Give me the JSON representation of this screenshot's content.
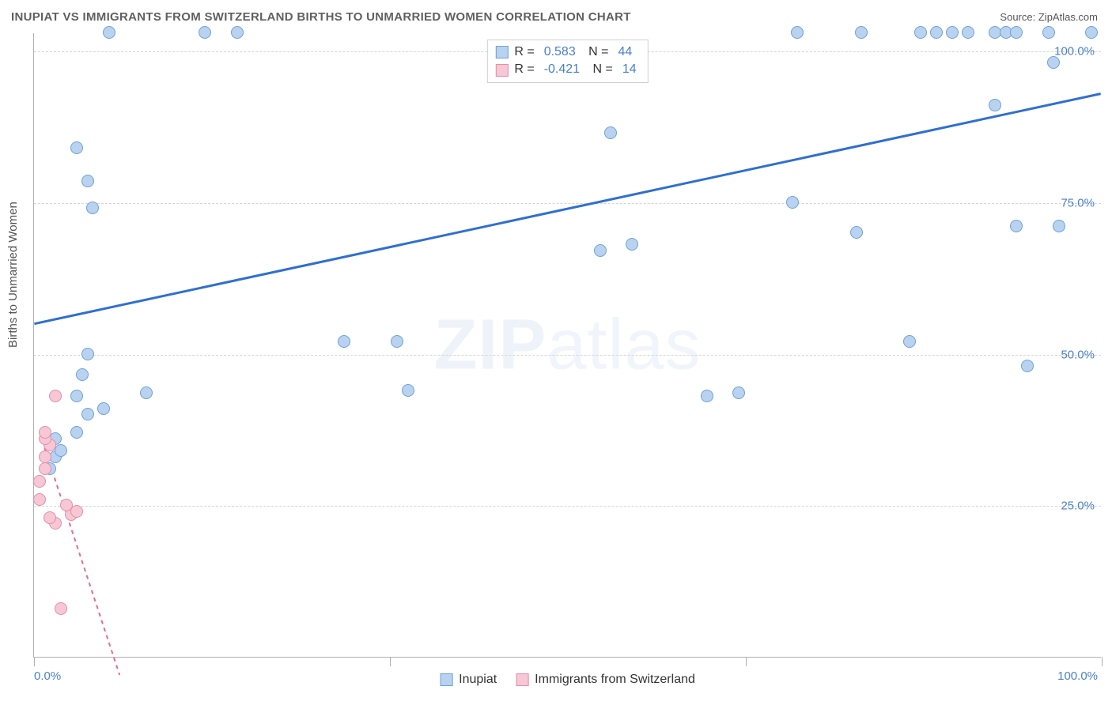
{
  "header": {
    "title": "INUPIAT VS IMMIGRANTS FROM SWITZERLAND BIRTHS TO UNMARRIED WOMEN CORRELATION CHART",
    "source_label": "Source:",
    "source_name": "ZipAtlas.com"
  },
  "ylabel": "Births to Unmarried Women",
  "watermark": {
    "bold": "ZIP",
    "light": "atlas"
  },
  "chart": {
    "type": "scatter",
    "xlim": [
      0,
      100
    ],
    "ylim": [
      0,
      103
    ],
    "grid_color": "#d5d5d5",
    "border_color": "#b0b0b0",
    "background_color": "#ffffff",
    "ytick_labels": [
      {
        "value": 25,
        "text": "25.0%"
      },
      {
        "value": 50,
        "text": "50.0%"
      },
      {
        "value": 75,
        "text": "75.0%"
      },
      {
        "value": 100,
        "text": "100.0%"
      }
    ],
    "xtick_positions": [
      0,
      33.3,
      66.7,
      100
    ],
    "xtick_labels": [
      {
        "pos": 0,
        "text": "0.0%",
        "align": "left"
      },
      {
        "pos": 100,
        "text": "100.0%",
        "align": "right"
      }
    ]
  },
  "series": [
    {
      "name": "Inupiat",
      "color_fill": "#b9d2ef",
      "color_stroke": "#6fa1d9",
      "line_color": "#2f6fd0",
      "line_width": 3,
      "line_dash": "none",
      "R": "0.583",
      "N": "44",
      "regression": {
        "x1": 0,
        "y1": 55,
        "x2": 100,
        "y2": 93
      },
      "points": [
        {
          "x": 1.5,
          "y": 31
        },
        {
          "x": 2,
          "y": 33
        },
        {
          "x": 2.5,
          "y": 34
        },
        {
          "x": 2,
          "y": 36
        },
        {
          "x": 4,
          "y": 37
        },
        {
          "x": 5,
          "y": 40
        },
        {
          "x": 6.5,
          "y": 41
        },
        {
          "x": 4,
          "y": 43
        },
        {
          "x": 10.5,
          "y": 43.5
        },
        {
          "x": 35,
          "y": 44
        },
        {
          "x": 4.5,
          "y": 46.5
        },
        {
          "x": 93,
          "y": 48
        },
        {
          "x": 5,
          "y": 50
        },
        {
          "x": 29,
          "y": 52
        },
        {
          "x": 34,
          "y": 52
        },
        {
          "x": 82,
          "y": 52
        },
        {
          "x": 63,
          "y": 43
        },
        {
          "x": 66,
          "y": 43.5
        },
        {
          "x": 53,
          "y": 67
        },
        {
          "x": 56,
          "y": 68
        },
        {
          "x": 77,
          "y": 70
        },
        {
          "x": 92,
          "y": 71
        },
        {
          "x": 96,
          "y": 71
        },
        {
          "x": 5.5,
          "y": 74
        },
        {
          "x": 71,
          "y": 75
        },
        {
          "x": 5,
          "y": 78.5
        },
        {
          "x": 4,
          "y": 84
        },
        {
          "x": 54,
          "y": 86.5
        },
        {
          "x": 90,
          "y": 91
        },
        {
          "x": 95.5,
          "y": 98
        },
        {
          "x": 7,
          "y": 103
        },
        {
          "x": 16,
          "y": 103
        },
        {
          "x": 19,
          "y": 103
        },
        {
          "x": 71.5,
          "y": 103
        },
        {
          "x": 77.5,
          "y": 103
        },
        {
          "x": 83,
          "y": 103
        },
        {
          "x": 84.5,
          "y": 103
        },
        {
          "x": 86,
          "y": 103
        },
        {
          "x": 87.5,
          "y": 103
        },
        {
          "x": 90,
          "y": 103
        },
        {
          "x": 91,
          "y": 103
        },
        {
          "x": 92,
          "y": 103
        },
        {
          "x": 95,
          "y": 103
        },
        {
          "x": 99,
          "y": 103
        }
      ]
    },
    {
      "name": "Immigrants from Switzerland",
      "color_fill": "#f6c7d5",
      "color_stroke": "#e58da9",
      "line_color": "#e26b8e",
      "line_width": 2,
      "line_dash": "5,5",
      "R": "-0.421",
      "N": "14",
      "regression": {
        "x1": 0.5,
        "y1": 37,
        "x2": 8,
        "y2": -3
      },
      "points": [
        {
          "x": 2.5,
          "y": 8
        },
        {
          "x": 2,
          "y": 22
        },
        {
          "x": 1.5,
          "y": 23
        },
        {
          "x": 3.5,
          "y": 23.5
        },
        {
          "x": 4,
          "y": 24
        },
        {
          "x": 3,
          "y": 25
        },
        {
          "x": 0.5,
          "y": 26
        },
        {
          "x": 0.5,
          "y": 29
        },
        {
          "x": 1,
          "y": 31
        },
        {
          "x": 1,
          "y": 33
        },
        {
          "x": 1.5,
          "y": 35
        },
        {
          "x": 1,
          "y": 36
        },
        {
          "x": 1,
          "y": 37
        },
        {
          "x": 2,
          "y": 43
        }
      ]
    }
  ],
  "legend_bottom": [
    {
      "label": "Inupiat",
      "fill": "#b9d2ef",
      "stroke": "#6fa1d9"
    },
    {
      "label": "Immigrants from Switzerland",
      "fill": "#f6c7d5",
      "stroke": "#e58da9"
    }
  ]
}
